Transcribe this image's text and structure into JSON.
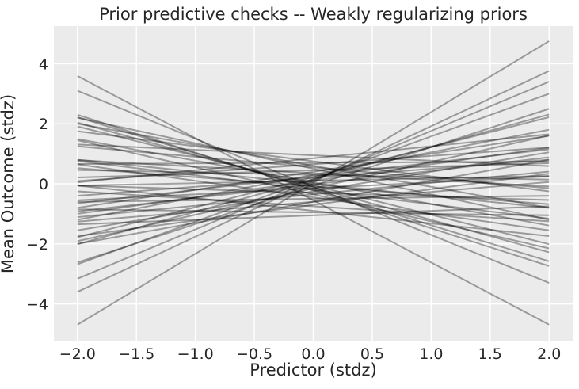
{
  "palette": {
    "figure_bg": "#ffffff",
    "axes_bg": "#ebebeb",
    "grid_color": "#ffffff",
    "text_color": "#262626",
    "line_color": "#000000",
    "line_alpha": 0.35
  },
  "chart_data": {
    "type": "line",
    "title": "Prior predictive checks -- Weakly regularizing priors",
    "xlabel": "Predictor (stdz)",
    "ylabel": "Mean Outcome (stdz)",
    "xlim": [
      -2.2,
      2.2
    ],
    "ylim": [
      -5.25,
      5.25
    ],
    "xticks": [
      -2.0,
      -1.5,
      -1.0,
      -0.5,
      0.0,
      0.5,
      1.0,
      1.5,
      2.0
    ],
    "xtick_labels": [
      "−2.0",
      "−1.5",
      "−1.0",
      "−0.5",
      "0.0",
      "0.5",
      "1.0",
      "1.5",
      "2.0"
    ],
    "yticks": [
      -4,
      -2,
      0,
      2,
      4
    ],
    "ytick_labels": [
      "−4",
      "−2",
      "0",
      "2",
      "4"
    ],
    "grid": true,
    "legend": "none",
    "x_range": [
      -2,
      2
    ],
    "n_lines": 50,
    "line_width": 2,
    "lines": [
      {
        "intercept": 0.03,
        "slope": 2.36
      },
      {
        "intercept": -0.55,
        "slope": -2.07
      },
      {
        "intercept": 0.08,
        "slope": 1.84
      },
      {
        "intercept": -0.1,
        "slope": -1.6
      },
      {
        "intercept": 0.12,
        "slope": 1.64
      },
      {
        "intercept": 0.16,
        "slope": 1.42
      },
      {
        "intercept": -0.06,
        "slope": 1.28
      },
      {
        "intercept": -0.22,
        "slope": -1.26
      },
      {
        "intercept": -0.18,
        "slope": -1.2
      },
      {
        "intercept": 0.15,
        "slope": 1.08
      },
      {
        "intercept": -0.12,
        "slope": -1.08
      },
      {
        "intercept": 0.22,
        "slope": 1.0
      },
      {
        "intercept": -0.05,
        "slope": -0.98
      },
      {
        "intercept": -0.35,
        "slope": -0.9
      },
      {
        "intercept": 0.5,
        "slope": -0.85
      },
      {
        "intercept": -0.15,
        "slope": 0.88
      },
      {
        "intercept": 0.3,
        "slope": 0.75
      },
      {
        "intercept": -0.6,
        "slope": 0.7
      },
      {
        "intercept": 0.6,
        "slope": -0.7
      },
      {
        "intercept": 0.05,
        "slope": -0.72
      },
      {
        "intercept": -0.25,
        "slope": 0.65
      },
      {
        "intercept": 0.4,
        "slope": 0.6
      },
      {
        "intercept": -0.45,
        "slope": -0.55
      },
      {
        "intercept": 0.1,
        "slope": 0.55
      },
      {
        "intercept": -0.7,
        "slope": 0.52
      },
      {
        "intercept": 0.75,
        "slope": -0.5
      },
      {
        "intercept": -0.2,
        "slope": -0.48
      },
      {
        "intercept": 0.25,
        "slope": 0.45
      },
      {
        "intercept": -0.9,
        "slope": -0.42
      },
      {
        "intercept": 0.85,
        "slope": 0.4
      },
      {
        "intercept": 0.0,
        "slope": -0.4
      },
      {
        "intercept": -0.35,
        "slope": 0.38
      },
      {
        "intercept": 0.55,
        "slope": -0.35
      },
      {
        "intercept": -0.6,
        "slope": 0.33
      },
      {
        "intercept": 0.2,
        "slope": 0.3
      },
      {
        "intercept": -0.08,
        "slope": -0.3
      },
      {
        "intercept": 0.65,
        "slope": 0.28
      },
      {
        "intercept": -0.75,
        "slope": -0.25
      },
      {
        "intercept": 0.35,
        "slope": -0.22
      },
      {
        "intercept": -0.15,
        "slope": 0.2
      },
      {
        "intercept": 0.95,
        "slope": -0.18
      },
      {
        "intercept": -1.05,
        "slope": 0.15
      },
      {
        "intercept": 0.45,
        "slope": 0.12
      },
      {
        "intercept": -0.3,
        "slope": -0.12
      },
      {
        "intercept": 0.1,
        "slope": 0.08
      },
      {
        "intercept": -0.5,
        "slope": 0.05
      },
      {
        "intercept": 0.7,
        "slope": 0.02
      },
      {
        "intercept": -0.95,
        "slope": -0.05
      },
      {
        "intercept": 0.3,
        "slope": -0.08
      },
      {
        "intercept": -0.02,
        "slope": 0.45
      }
    ]
  }
}
